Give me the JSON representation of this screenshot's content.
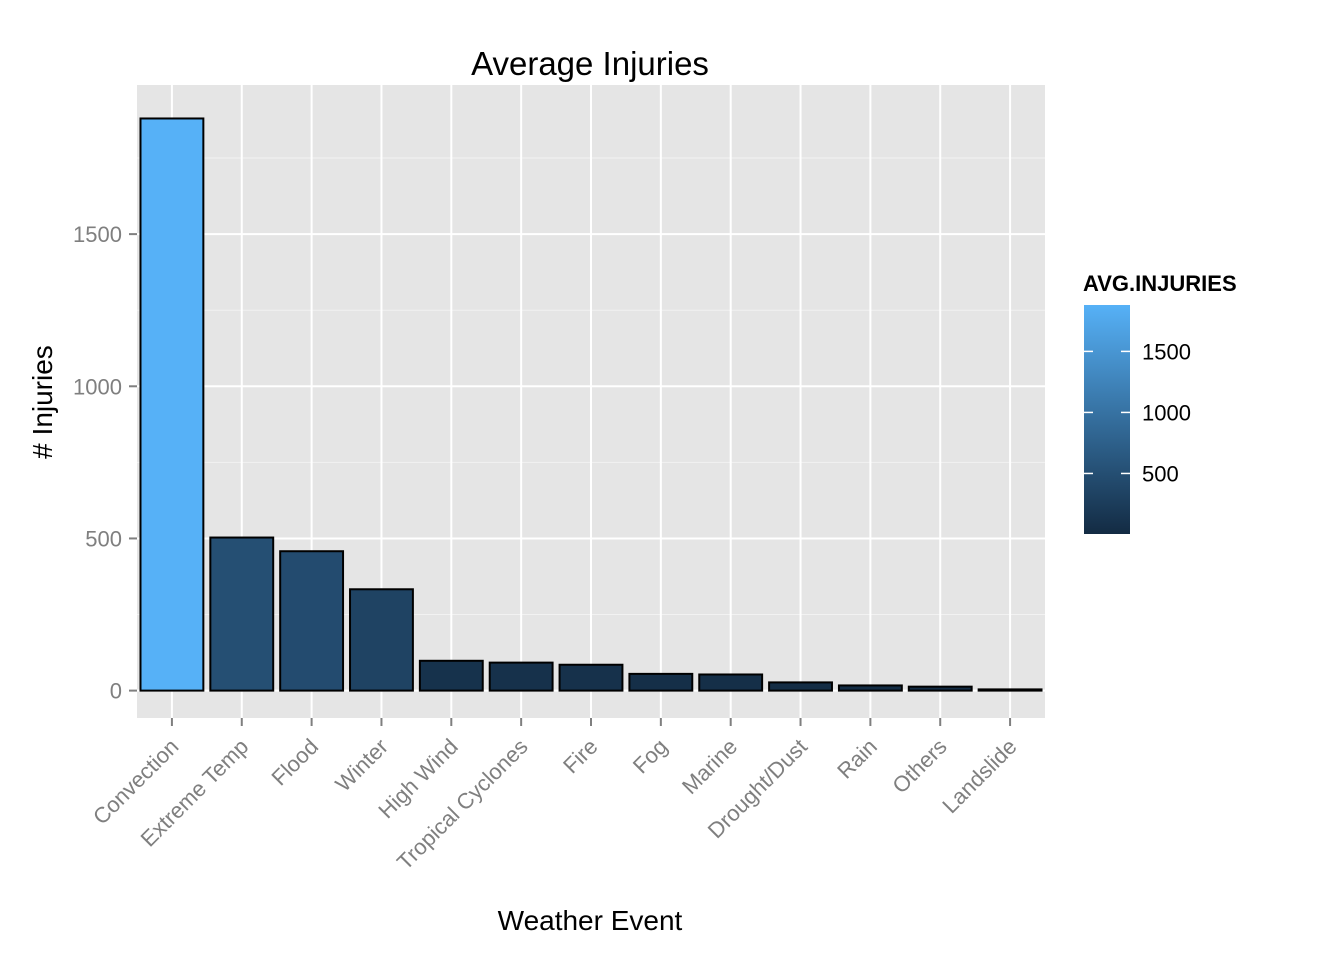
{
  "chart_data": {
    "type": "bar",
    "title": "Average Injuries",
    "xlabel": "Weather Event",
    "ylabel": "# Injuries",
    "categories": [
      "Convection",
      "Extreme Temp",
      "Flood",
      "Winter",
      "High Wind",
      "Tropical Cyclones",
      "Fire",
      "Fog",
      "Marine",
      "Drought/Dust",
      "Rain",
      "Others",
      "Landslide"
    ],
    "values": [
      1880,
      503,
      458,
      333,
      98,
      92,
      85,
      55,
      53,
      27,
      17,
      13,
      4
    ],
    "ylim": [
      -90,
      1990
    ],
    "y_ticks": [
      0,
      500,
      1000,
      1500
    ],
    "y_tick_labels": [
      "0",
      "500",
      "1000",
      "1500"
    ],
    "grid": true,
    "background_color": "#e5e5e5",
    "grid_color": "#ffffff",
    "bar_outline_color": "#000000",
    "color_scale": {
      "low_color": "#132b43",
      "high_color": "#56b1f7",
      "low_value": 4,
      "high_value": 1880
    },
    "legend": {
      "title": "AVG.INJURIES",
      "position": "right",
      "labels": [
        "1500",
        "1000",
        "500"
      ],
      "values": [
        1500,
        1000,
        500
      ]
    }
  }
}
